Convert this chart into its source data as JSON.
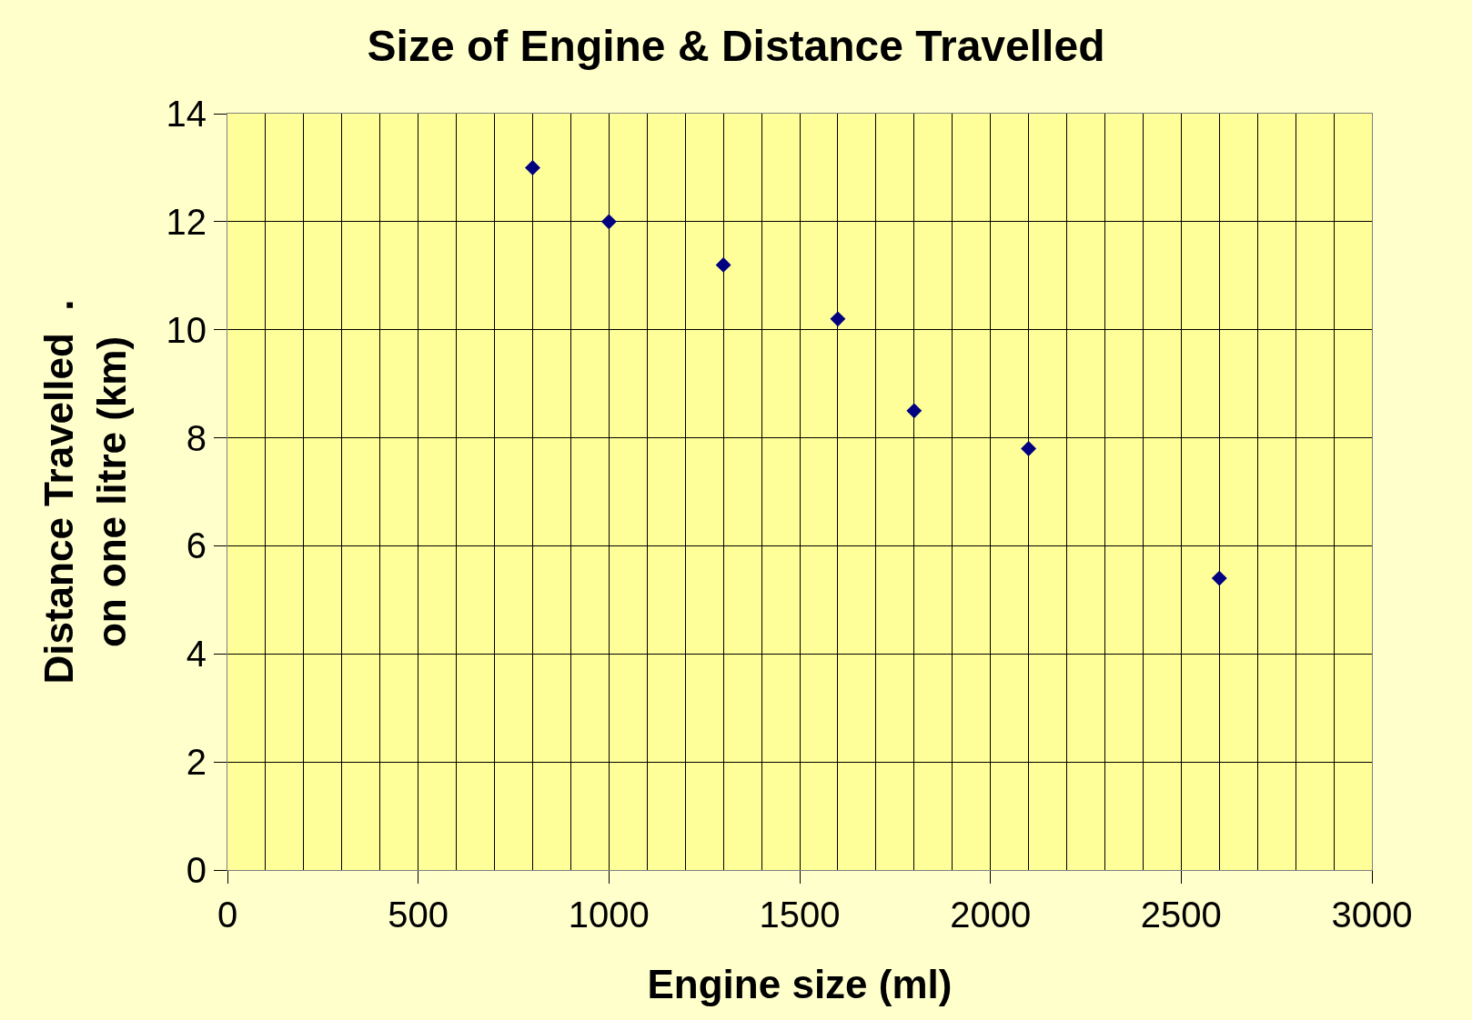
{
  "chart_data": {
    "type": "scatter",
    "title": "Size of Engine & Distance Travelled",
    "xlabel": "Engine size (ml)",
    "ylabel": "Distance Travelled  .\non one litre (km)",
    "x": [
      800,
      1000,
      1300,
      1600,
      1800,
      2100,
      2600
    ],
    "series": [
      {
        "color": "#000080",
        "values": [
          13,
          12,
          11.2,
          10.2,
          8.5,
          7.8,
          5.4
        ]
      }
    ],
    "marker": "diamond",
    "grid": true,
    "xlim": [
      0,
      3000
    ],
    "ylim": [
      0,
      14
    ],
    "xticks": [
      0,
      {
        "value": 100,
        "label": null
      },
      {
        "value": 200,
        "label": null
      },
      {
        "value": 300,
        "label": null
      },
      {
        "value": 400,
        "label": null
      },
      500,
      {
        "value": 600,
        "label": null
      },
      {
        "value": 700,
        "label": null
      },
      {
        "value": 800,
        "label": null
      },
      {
        "value": 900,
        "label": null
      },
      1000,
      {
        "value": 1100,
        "label": null
      },
      {
        "value": 1200,
        "label": null
      },
      {
        "value": 1300,
        "label": null
      },
      {
        "value": 1400,
        "label": null
      },
      1500,
      {
        "value": 1600,
        "label": null
      },
      {
        "value": 1700,
        "label": null
      },
      {
        "value": 1800,
        "label": null
      },
      {
        "value": 1900,
        "label": null
      },
      2000,
      {
        "value": 2100,
        "label": null
      },
      {
        "value": 2200,
        "label": null
      },
      {
        "value": 2300,
        "label": null
      },
      {
        "value": 2400,
        "label": null
      },
      2500,
      {
        "value": 2600,
        "label": null
      },
      {
        "value": 2700,
        "label": null
      },
      {
        "value": 2800,
        "label": null
      },
      {
        "value": 2900,
        "label": null
      },
      3000
    ],
    "yticks": [
      0,
      2,
      4,
      6,
      8,
      10,
      12,
      14
    ]
  }
}
